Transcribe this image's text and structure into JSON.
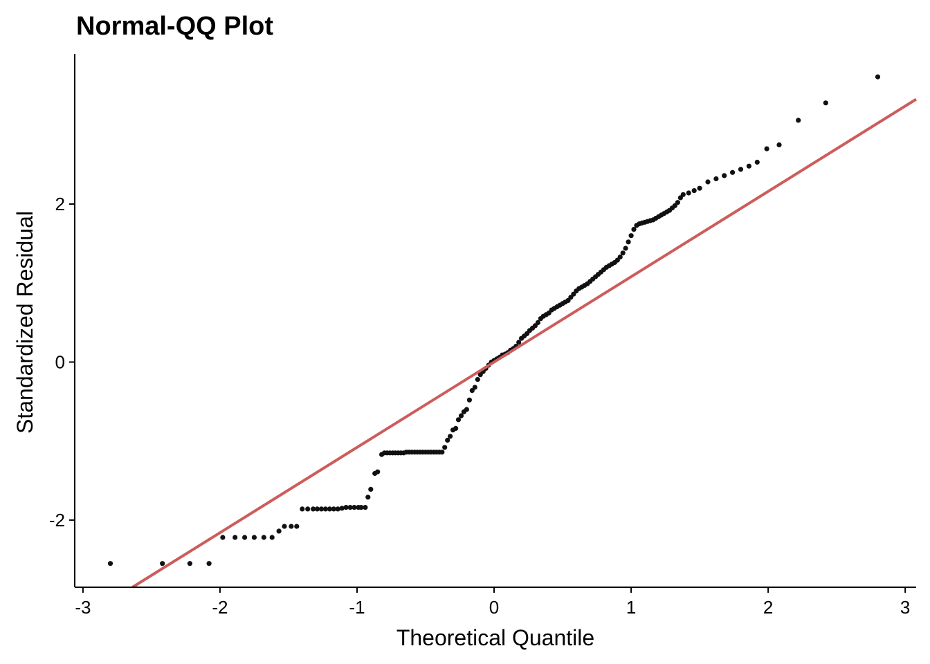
{
  "chart_data": {
    "type": "scatter",
    "title": "Normal-QQ Plot",
    "xlabel": "Theoretical Quantile",
    "ylabel": "Standardized Residual",
    "xlim": [
      -3.06,
      3.08
    ],
    "ylim": [
      -2.85,
      3.9
    ],
    "xticks": [
      -3,
      -2,
      -1,
      0,
      1,
      2,
      3
    ],
    "xtick_labels": [
      "-3",
      "-2",
      "-1",
      "0",
      "1",
      "2",
      "3"
    ],
    "yticks": [
      -2,
      0,
      2
    ],
    "ytick_labels": [
      "-2",
      "0",
      "2"
    ],
    "grid": false,
    "point_color": "#111111",
    "line_color": "#CD5C5C",
    "reference_line": {
      "intercept": 0.0,
      "slope": 1.08
    },
    "series": [
      {
        "points": [
          [
            -2.8,
            -2.55
          ],
          [
            -2.42,
            -2.55
          ],
          [
            -2.22,
            -2.55
          ],
          [
            -2.08,
            -2.55
          ],
          [
            -1.98,
            -2.22
          ],
          [
            -1.89,
            -2.22
          ],
          [
            -1.82,
            -2.22
          ],
          [
            -1.75,
            -2.22
          ],
          [
            -1.68,
            -2.22
          ],
          [
            -1.62,
            -2.22
          ],
          [
            -1.57,
            -2.14
          ],
          [
            -1.53,
            -2.08
          ],
          [
            -1.48,
            -2.08
          ],
          [
            -1.44,
            -2.08
          ],
          [
            -1.4,
            -1.86
          ],
          [
            -1.36,
            -1.86
          ],
          [
            -1.32,
            -1.86
          ],
          [
            -1.29,
            -1.86
          ],
          [
            -1.26,
            -1.86
          ],
          [
            -1.23,
            -1.86
          ],
          [
            -1.2,
            -1.86
          ],
          [
            -1.17,
            -1.86
          ],
          [
            -1.14,
            -1.86
          ],
          [
            -1.11,
            -1.85
          ],
          [
            -1.08,
            -1.84
          ],
          [
            -1.05,
            -1.84
          ],
          [
            -1.02,
            -1.84
          ],
          [
            -0.99,
            -1.84
          ],
          [
            -0.97,
            -1.84
          ],
          [
            -0.94,
            -1.84
          ],
          [
            -0.92,
            -1.71
          ],
          [
            -0.9,
            -1.61
          ],
          [
            -0.87,
            -1.41
          ],
          [
            -0.85,
            -1.39
          ],
          [
            -0.82,
            -1.17
          ],
          [
            -0.8,
            -1.15
          ],
          [
            -0.78,
            -1.15
          ],
          [
            -0.76,
            -1.15
          ],
          [
            -0.74,
            -1.15
          ],
          [
            -0.72,
            -1.15
          ],
          [
            -0.7,
            -1.15
          ],
          [
            -0.68,
            -1.15
          ],
          [
            -0.66,
            -1.15
          ],
          [
            -0.64,
            -1.14
          ],
          [
            -0.62,
            -1.14
          ],
          [
            -0.6,
            -1.14
          ],
          [
            -0.58,
            -1.14
          ],
          [
            -0.56,
            -1.14
          ],
          [
            -0.54,
            -1.14
          ],
          [
            -0.52,
            -1.14
          ],
          [
            -0.5,
            -1.14
          ],
          [
            -0.48,
            -1.14
          ],
          [
            -0.46,
            -1.14
          ],
          [
            -0.44,
            -1.14
          ],
          [
            -0.42,
            -1.14
          ],
          [
            -0.4,
            -1.14
          ],
          [
            -0.38,
            -1.14
          ],
          [
            -0.36,
            -1.08
          ],
          [
            -0.34,
            -0.99
          ],
          [
            -0.32,
            -0.94
          ],
          [
            -0.3,
            -0.86
          ],
          [
            -0.28,
            -0.84
          ],
          [
            -0.26,
            -0.73
          ],
          [
            -0.24,
            -0.68
          ],
          [
            -0.22,
            -0.63
          ],
          [
            -0.2,
            -0.6
          ],
          [
            -0.18,
            -0.48
          ],
          [
            -0.16,
            -0.36
          ],
          [
            -0.14,
            -0.32
          ],
          [
            -0.12,
            -0.22
          ],
          [
            -0.1,
            -0.16
          ],
          [
            -0.08,
            -0.12
          ],
          [
            -0.06,
            -0.08
          ],
          [
            -0.04,
            -0.04
          ],
          [
            -0.02,
            0.0
          ],
          [
            0.0,
            0.02
          ],
          [
            0.02,
            0.04
          ],
          [
            0.04,
            0.06
          ],
          [
            0.06,
            0.09
          ],
          [
            0.08,
            0.1
          ],
          [
            0.1,
            0.12
          ],
          [
            0.12,
            0.15
          ],
          [
            0.14,
            0.17
          ],
          [
            0.16,
            0.2
          ],
          [
            0.18,
            0.25
          ],
          [
            0.2,
            0.3
          ],
          [
            0.22,
            0.33
          ],
          [
            0.24,
            0.36
          ],
          [
            0.26,
            0.4
          ],
          [
            0.28,
            0.43
          ],
          [
            0.3,
            0.46
          ],
          [
            0.32,
            0.5
          ],
          [
            0.34,
            0.55
          ],
          [
            0.36,
            0.58
          ],
          [
            0.38,
            0.6
          ],
          [
            0.4,
            0.62
          ],
          [
            0.42,
            0.66
          ],
          [
            0.44,
            0.68
          ],
          [
            0.46,
            0.7
          ],
          [
            0.48,
            0.72
          ],
          [
            0.5,
            0.74
          ],
          [
            0.52,
            0.76
          ],
          [
            0.54,
            0.78
          ],
          [
            0.56,
            0.82
          ],
          [
            0.58,
            0.86
          ],
          [
            0.6,
            0.9
          ],
          [
            0.62,
            0.93
          ],
          [
            0.64,
            0.95
          ],
          [
            0.66,
            0.97
          ],
          [
            0.68,
            0.99
          ],
          [
            0.7,
            1.02
          ],
          [
            0.72,
            1.05
          ],
          [
            0.74,
            1.08
          ],
          [
            0.76,
            1.11
          ],
          [
            0.78,
            1.14
          ],
          [
            0.8,
            1.17
          ],
          [
            0.82,
            1.2
          ],
          [
            0.84,
            1.22
          ],
          [
            0.86,
            1.24
          ],
          [
            0.88,
            1.26
          ],
          [
            0.9,
            1.29
          ],
          [
            0.92,
            1.33
          ],
          [
            0.94,
            1.38
          ],
          [
            0.96,
            1.44
          ],
          [
            0.98,
            1.52
          ],
          [
            1.0,
            1.6
          ],
          [
            1.02,
            1.68
          ],
          [
            1.04,
            1.73
          ],
          [
            1.06,
            1.75
          ],
          [
            1.08,
            1.76
          ],
          [
            1.1,
            1.77
          ],
          [
            1.12,
            1.78
          ],
          [
            1.14,
            1.79
          ],
          [
            1.16,
            1.8
          ],
          [
            1.18,
            1.82
          ],
          [
            1.2,
            1.84
          ],
          [
            1.22,
            1.86
          ],
          [
            1.24,
            1.88
          ],
          [
            1.26,
            1.9
          ],
          [
            1.28,
            1.92
          ],
          [
            1.3,
            1.95
          ],
          [
            1.32,
            1.98
          ],
          [
            1.34,
            2.02
          ],
          [
            1.36,
            2.08
          ],
          [
            1.38,
            2.12
          ],
          [
            1.42,
            2.14
          ],
          [
            1.46,
            2.17
          ],
          [
            1.5,
            2.2
          ],
          [
            1.56,
            2.28
          ],
          [
            1.62,
            2.32
          ],
          [
            1.68,
            2.36
          ],
          [
            1.74,
            2.4
          ],
          [
            1.8,
            2.44
          ],
          [
            1.86,
            2.48
          ],
          [
            1.92,
            2.53
          ],
          [
            1.99,
            2.7
          ],
          [
            2.08,
            2.75
          ],
          [
            2.22,
            3.06
          ],
          [
            2.42,
            3.28
          ],
          [
            2.8,
            3.61
          ]
        ]
      }
    ]
  }
}
